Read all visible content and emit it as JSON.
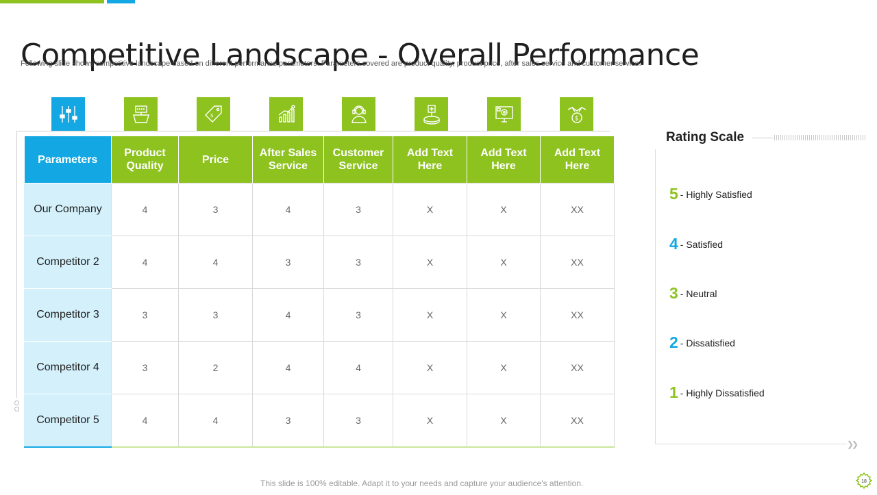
{
  "slide": {
    "title": "Competitive Landscape - Overall Performance",
    "subtitle": "Following slide shows competitive landscape based on different performance parameters. Parameters covered are product quality, product price, after sales service and customer service.",
    "footer": "This slide is 100% editable. Adapt it to your needs and capture your audience's attention.",
    "page_number": "18"
  },
  "colors": {
    "green": "#8dc21f",
    "blue": "#13a8e3",
    "row_header_bg": "#d3f0fb"
  },
  "icons": [
    "sliders-icon",
    "product-box-icon",
    "price-tag-icon",
    "growth-chart-icon",
    "customer-service-icon",
    "add-item-icon",
    "monitor-settings-icon",
    "handshake-money-icon"
  ],
  "table": {
    "headers": [
      "Parameters",
      "Product Quality",
      "Price",
      "After Sales Service",
      "Customer Service",
      "Add Text Here",
      "Add Text Here",
      "Add Text Here"
    ],
    "rows": [
      {
        "name": "Our Company",
        "values": [
          "4",
          "3",
          "4",
          "3",
          "X",
          "X",
          "XX"
        ]
      },
      {
        "name": "Competitor 2",
        "values": [
          "4",
          "4",
          "3",
          "3",
          "X",
          "X",
          "XX"
        ]
      },
      {
        "name": "Competitor 3",
        "values": [
          "3",
          "3",
          "4",
          "3",
          "X",
          "X",
          "XX"
        ]
      },
      {
        "name": "Competitor 4",
        "values": [
          "3",
          "2",
          "4",
          "4",
          "X",
          "X",
          "XX"
        ]
      },
      {
        "name": "Competitor 5",
        "values": [
          "4",
          "4",
          "3",
          "3",
          "X",
          "X",
          "XX"
        ]
      }
    ]
  },
  "rating_scale": {
    "title": "Rating Scale",
    "items": [
      {
        "number": "5",
        "label": "- Highly Satisfied"
      },
      {
        "number": "4",
        "label": "- Satisfied"
      },
      {
        "number": "3",
        "label": "- Neutral"
      },
      {
        "number": "2",
        "label": "- Dissatisfied"
      },
      {
        "number": "1",
        "label": "- Highly Dissatisfied"
      }
    ]
  }
}
